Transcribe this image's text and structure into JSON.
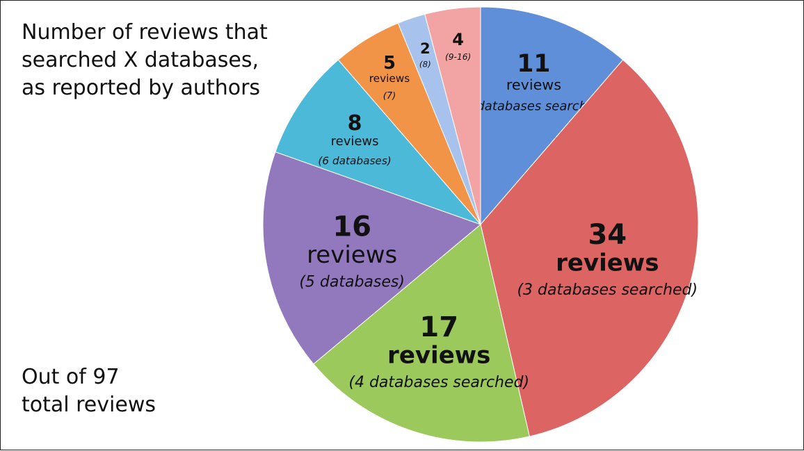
{
  "chart_data": {
    "type": "pie",
    "title": "Number of reviews that searched X databases, as reported by authors",
    "annotation": "Out of 97 total reviews",
    "values": [
      11,
      34,
      17,
      16,
      8,
      5,
      2,
      4
    ],
    "unit_labels": [
      "reviews",
      "reviews",
      "reviews",
      "reviews",
      "reviews",
      "reviews",
      null,
      null
    ],
    "categories": [
      "(2 databases searched)",
      "(3 databases searched)",
      "(4 databases searched)",
      "(5 databases)",
      "(6 databases)",
      "(7)",
      "(8)",
      "(9-16)"
    ],
    "colors": [
      "#5f8fd8",
      "#dc6462",
      "#9cc95c",
      "#9279bd",
      "#4cb9d9",
      "#f29447",
      "#a8c2ee",
      "#f2a4a4"
    ]
  }
}
